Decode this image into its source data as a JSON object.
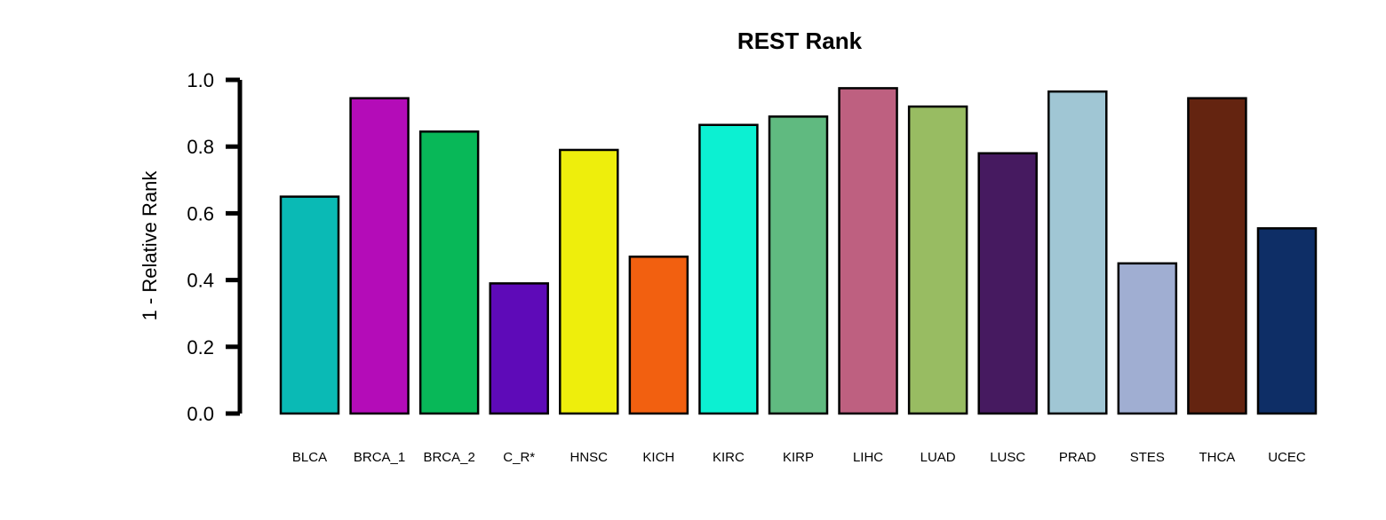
{
  "chart_data": {
    "type": "bar",
    "title": "REST Rank",
    "xlabel": "",
    "ylabel": "1 - Relative Rank",
    "ylim": [
      0,
      1
    ],
    "yticks": [
      "0.0",
      "0.2",
      "0.4",
      "0.6",
      "0.8",
      "1.0"
    ],
    "categories": [
      "BLCA",
      "BRCA_1",
      "BRCA_2",
      "C_R*",
      "HNSC",
      "KICH",
      "KIRC",
      "KIRP",
      "LIHC",
      "LUAD",
      "LUSC",
      "PRAD",
      "STES",
      "THCA",
      "UCEC"
    ],
    "values": [
      0.65,
      0.945,
      0.845,
      0.39,
      0.79,
      0.47,
      0.865,
      0.89,
      0.975,
      0.92,
      0.78,
      0.965,
      0.45,
      0.945,
      0.555
    ],
    "colors": [
      "#0ABAB5",
      "#B40CB8",
      "#08B858",
      "#5E0AB8",
      "#EEEE0C",
      "#F26010",
      "#0CF0D2",
      "#60BA80",
      "#BE6080",
      "#98BC62",
      "#461A60",
      "#A0C6D4",
      "#A0AED2",
      "#642410",
      "#0E2E66"
    ],
    "grid": false,
    "legend": "none"
  }
}
